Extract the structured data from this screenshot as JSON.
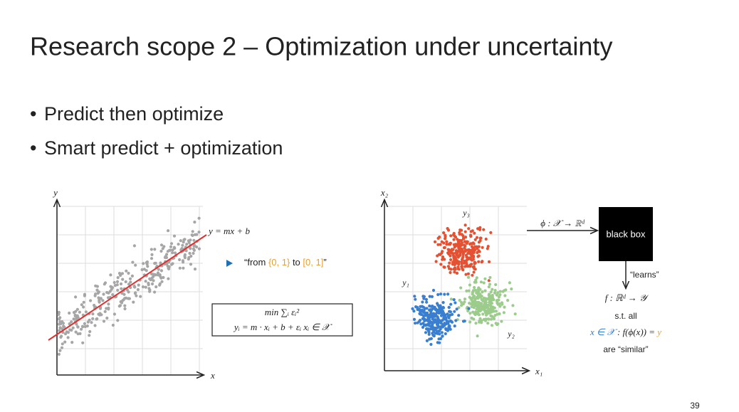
{
  "header": {
    "title": "Research scope 2 – Optimization under uncertainty"
  },
  "bullets": [
    "Predict then optimize",
    "Smart predict + optimization"
  ],
  "left_figure": {
    "y_axis": "y",
    "x_axis": "x",
    "line_label": "y = mx + b",
    "note": {
      "prefix": "“from ",
      "set_a": "{0, 1}",
      "middle": " to ",
      "set_b": "[0, 1]",
      "suffix": "”"
    },
    "formula": [
      "min ∑ᵢ εᵢ²",
      "yᵢ = m · xᵢ + b + εᵢ    xᵢ ∈ 𝒳"
    ]
  },
  "right_figure": {
    "y_axis": "x₂",
    "x_axis": "x₁",
    "cluster_labels": [
      "y₃",
      "y₁",
      "y₂"
    ],
    "map_label": "ϕ : 𝒳 → ℝᵈ",
    "box": "black box",
    "learns": "“learns”",
    "f_label": "f : ℝᵈ → 𝒴",
    "st": "s.t. all",
    "condition": {
      "lhs": "x ∈ 𝒳",
      "rhs": " : f(ϕ(x)) = ",
      "y": "y"
    },
    "similar": "are “similar”"
  },
  "page_number": "39"
}
